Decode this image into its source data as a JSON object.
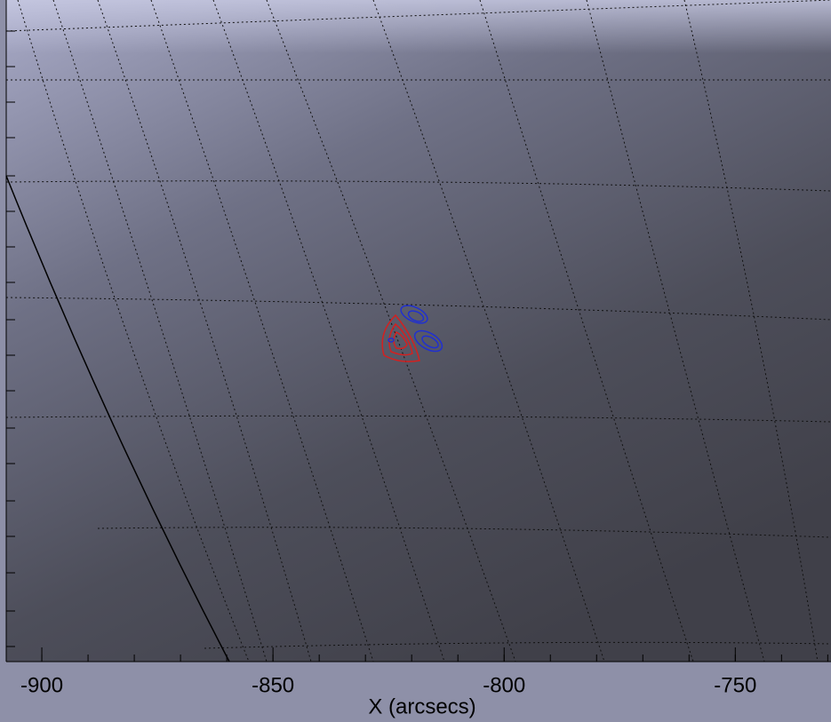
{
  "chart_data": {
    "type": "image",
    "xlabel": "X (arcsecs)",
    "xlim": [
      -907.7,
      -729.3
    ],
    "xticks": [
      -900,
      -850,
      -800,
      -750
    ],
    "xminorticks": [
      -900,
      -890,
      -880,
      -870,
      -860,
      -850,
      -840,
      -830,
      -820,
      -810,
      -800,
      -790,
      -780,
      -770,
      -760,
      -750,
      -740,
      -730
    ]
  }
}
